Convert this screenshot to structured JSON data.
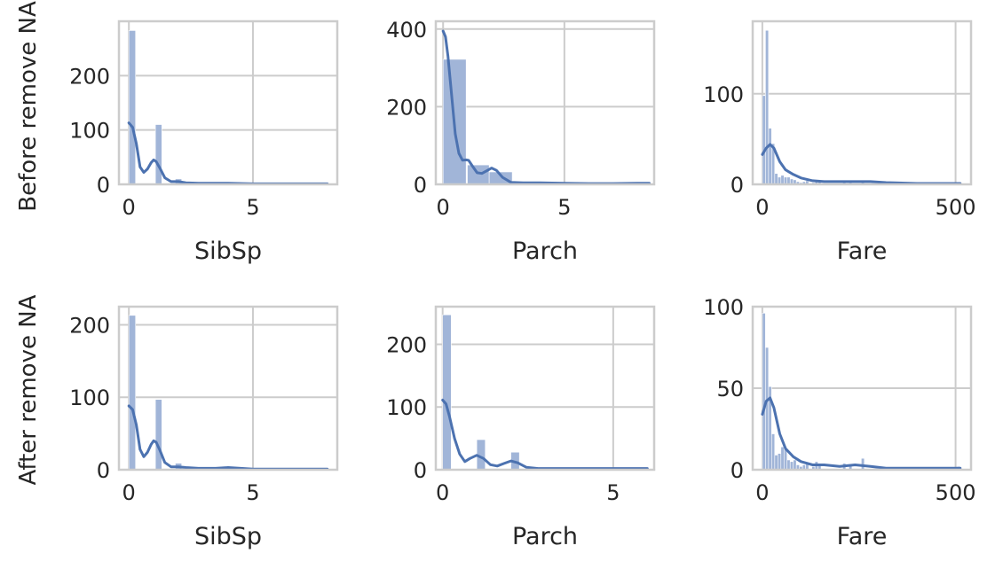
{
  "row_labels": [
    "Before remove NA",
    "After remove NA"
  ],
  "colors": {
    "bar": "#a1b5d8",
    "kde": "#4c72b0",
    "grid": "#cccccc",
    "frame": "#cccccc",
    "text": "#262626"
  },
  "chart_data": [
    {
      "type": "histogram",
      "row": 0,
      "col": 0,
      "xlabel": "SibSp",
      "ylabel": "Before remove NA",
      "xlim": [
        -0.4,
        8.4
      ],
      "ylim": [
        0,
        300
      ],
      "xticks": [
        0,
        5
      ],
      "xtick_labels": [
        "0",
        "5"
      ],
      "yticks": [
        0,
        100,
        200
      ],
      "ytick_labels": [
        "0",
        "100",
        "200"
      ],
      "bins": [
        [
          0,
          0.27,
          283
        ],
        [
          1.07,
          1.33,
          110
        ],
        [
          1.87,
          2.13,
          10
        ],
        [
          2.93,
          3.2,
          2
        ],
        [
          4,
          4.27,
          2
        ],
        [
          7.73,
          8,
          1
        ]
      ],
      "kde": [
        [
          0,
          113
        ],
        [
          0.15,
          105
        ],
        [
          0.3,
          75
        ],
        [
          0.45,
          32
        ],
        [
          0.6,
          22
        ],
        [
          0.75,
          28
        ],
        [
          0.9,
          40
        ],
        [
          1,
          45
        ],
        [
          1.1,
          42
        ],
        [
          1.25,
          30
        ],
        [
          1.45,
          12
        ],
        [
          1.7,
          5
        ],
        [
          2,
          5
        ],
        [
          2.3,
          3
        ],
        [
          2.8,
          2
        ],
        [
          3.5,
          2
        ],
        [
          4,
          2
        ],
        [
          5,
          1
        ],
        [
          6,
          1
        ],
        [
          7,
          1
        ],
        [
          8,
          1
        ]
      ]
    },
    {
      "type": "histogram",
      "row": 0,
      "col": 1,
      "xlabel": "Parch",
      "ylabel": "",
      "xlim": [
        -0.3,
        8.7
      ],
      "ylim": [
        0,
        420
      ],
      "xticks": [
        0,
        5
      ],
      "xtick_labels": [
        "0",
        "5"
      ],
      "yticks": [
        0,
        200,
        400
      ],
      "ytick_labels": [
        "0",
        "200",
        "400"
      ],
      "bins": [
        [
          0,
          0.95,
          322
        ],
        [
          1,
          1.9,
          50
        ],
        [
          1.9,
          2.85,
          32
        ],
        [
          2.95,
          3.8,
          3
        ],
        [
          3.8,
          4.75,
          3
        ],
        [
          4.75,
          5.7,
          3
        ],
        [
          5.7,
          6.6,
          1
        ]
      ],
      "kde": [
        [
          0,
          395
        ],
        [
          0.1,
          380
        ],
        [
          0.2,
          330
        ],
        [
          0.35,
          230
        ],
        [
          0.5,
          130
        ],
        [
          0.65,
          80
        ],
        [
          0.8,
          62
        ],
        [
          0.95,
          63
        ],
        [
          1.05,
          62
        ],
        [
          1.2,
          48
        ],
        [
          1.4,
          30
        ],
        [
          1.6,
          28
        ],
        [
          1.8,
          35
        ],
        [
          2,
          42
        ],
        [
          2.2,
          36
        ],
        [
          2.45,
          18
        ],
        [
          2.8,
          5
        ],
        [
          3.3,
          4
        ],
        [
          4,
          4
        ],
        [
          5,
          3
        ],
        [
          6,
          2
        ],
        [
          7,
          2
        ],
        [
          8,
          3
        ],
        [
          8.5,
          3
        ]
      ]
    },
    {
      "type": "histogram",
      "row": 0,
      "col": 2,
      "xlabel": "Fare",
      "ylabel": "",
      "xlim": [
        -25,
        540
      ],
      "ylim": [
        0,
        180
      ],
      "xticks": [
        0,
        500
      ],
      "xtick_labels": [
        "0",
        "500"
      ],
      "yticks": [
        0,
        100
      ],
      "ytick_labels": [
        "0",
        "100"
      ],
      "bins": [
        [
          0,
          8,
          98
        ],
        [
          8,
          16,
          170
        ],
        [
          16,
          24,
          62
        ],
        [
          24,
          32,
          45
        ],
        [
          32,
          40,
          12
        ],
        [
          40,
          48,
          8
        ],
        [
          48,
          56,
          10
        ],
        [
          56,
          64,
          8
        ],
        [
          64,
          72,
          8
        ],
        [
          72,
          80,
          6
        ],
        [
          80,
          88,
          5
        ],
        [
          88,
          96,
          3
        ],
        [
          96,
          104,
          2
        ],
        [
          104,
          112,
          3
        ],
        [
          112,
          120,
          4
        ],
        [
          128,
          136,
          2
        ],
        [
          136,
          144,
          4
        ],
        [
          144,
          152,
          3
        ],
        [
          208,
          216,
          4
        ],
        [
          224,
          232,
          2
        ],
        [
          256,
          264,
          4
        ],
        [
          504,
          512,
          2
        ]
      ],
      "kde": [
        [
          0,
          33
        ],
        [
          10,
          40
        ],
        [
          20,
          44
        ],
        [
          30,
          40
        ],
        [
          45,
          25
        ],
        [
          60,
          16
        ],
        [
          80,
          11
        ],
        [
          100,
          7
        ],
        [
          130,
          4
        ],
        [
          160,
          3
        ],
        [
          200,
          3
        ],
        [
          240,
          3
        ],
        [
          280,
          3
        ],
        [
          320,
          2
        ],
        [
          400,
          1
        ],
        [
          512,
          1
        ]
      ]
    },
    {
      "type": "histogram",
      "row": 1,
      "col": 0,
      "xlabel": "SibSp",
      "ylabel": "After remove NA",
      "xlim": [
        -0.4,
        8.4
      ],
      "ylim": [
        0,
        225
      ],
      "xticks": [
        0,
        5
      ],
      "xtick_labels": [
        "0",
        "5"
      ],
      "yticks": [
        0,
        100,
        200
      ],
      "ytick_labels": [
        "0",
        "100",
        "200"
      ],
      "bins": [
        [
          0,
          0.27,
          213
        ],
        [
          1.07,
          1.33,
          97
        ],
        [
          1.87,
          2.13,
          9
        ],
        [
          2.93,
          3.2,
          2
        ],
        [
          4,
          4.27,
          3
        ],
        [
          7.73,
          8,
          1
        ]
      ],
      "kde": [
        [
          0,
          88
        ],
        [
          0.15,
          83
        ],
        [
          0.3,
          62
        ],
        [
          0.45,
          28
        ],
        [
          0.6,
          18
        ],
        [
          0.75,
          24
        ],
        [
          0.9,
          35
        ],
        [
          1,
          40
        ],
        [
          1.1,
          38
        ],
        [
          1.25,
          27
        ],
        [
          1.45,
          10
        ],
        [
          1.7,
          4
        ],
        [
          2,
          4
        ],
        [
          2.3,
          3
        ],
        [
          2.8,
          2
        ],
        [
          3.5,
          2
        ],
        [
          4,
          3
        ],
        [
          5,
          1
        ],
        [
          6,
          1
        ],
        [
          7,
          1
        ],
        [
          8,
          1
        ]
      ]
    },
    {
      "type": "histogram",
      "row": 1,
      "col": 1,
      "xlabel": "Parch",
      "ylabel": "",
      "xlim": [
        -0.2,
        6.2
      ],
      "ylim": [
        0,
        260
      ],
      "xticks": [
        0,
        5
      ],
      "xtick_labels": [
        "0",
        "5"
      ],
      "yticks": [
        0,
        100,
        200
      ],
      "ytick_labels": [
        "0",
        "100",
        "200"
      ],
      "bins": [
        [
          0,
          0.25,
          247
        ],
        [
          1,
          1.25,
          48
        ],
        [
          2,
          2.25,
          28
        ],
        [
          3,
          3.25,
          2
        ],
        [
          4,
          4.25,
          2
        ],
        [
          5,
          5.25,
          2
        ],
        [
          6,
          6.25,
          1
        ]
      ],
      "kde": [
        [
          0,
          111
        ],
        [
          0.1,
          105
        ],
        [
          0.2,
          85
        ],
        [
          0.35,
          50
        ],
        [
          0.5,
          25
        ],
        [
          0.65,
          13
        ],
        [
          0.8,
          18
        ],
        [
          1,
          23
        ],
        [
          1.2,
          18
        ],
        [
          1.4,
          8
        ],
        [
          1.6,
          6
        ],
        [
          1.8,
          10
        ],
        [
          2,
          14
        ],
        [
          2.2,
          11
        ],
        [
          2.45,
          4
        ],
        [
          2.8,
          2
        ],
        [
          3.5,
          2
        ],
        [
          4,
          2
        ],
        [
          5,
          2
        ],
        [
          6,
          2
        ]
      ]
    },
    {
      "type": "histogram",
      "row": 1,
      "col": 2,
      "xlabel": "Fare",
      "ylabel": "",
      "xlim": [
        -25,
        540
      ],
      "ylim": [
        0,
        100
      ],
      "xticks": [
        0,
        500
      ],
      "xtick_labels": [
        "0",
        "500"
      ],
      "yticks": [
        0,
        50,
        100
      ],
      "ytick_labels": [
        "0",
        "50",
        "100"
      ],
      "bins": [
        [
          0,
          8,
          96
        ],
        [
          8,
          16,
          75
        ],
        [
          16,
          24,
          51
        ],
        [
          24,
          32,
          22
        ],
        [
          32,
          40,
          9
        ],
        [
          40,
          48,
          10
        ],
        [
          48,
          56,
          14
        ],
        [
          56,
          64,
          13
        ],
        [
          64,
          72,
          6
        ],
        [
          72,
          80,
          5
        ],
        [
          80,
          88,
          6
        ],
        [
          88,
          96,
          3
        ],
        [
          96,
          104,
          2
        ],
        [
          104,
          112,
          3
        ],
        [
          112,
          120,
          4
        ],
        [
          128,
          136,
          2
        ],
        [
          136,
          144,
          5
        ],
        [
          144,
          152,
          3
        ],
        [
          208,
          216,
          4
        ],
        [
          224,
          232,
          3
        ],
        [
          256,
          264,
          7
        ],
        [
          504,
          512,
          2
        ]
      ],
      "kde": [
        [
          0,
          34
        ],
        [
          10,
          42
        ],
        [
          20,
          44
        ],
        [
          30,
          38
        ],
        [
          45,
          22
        ],
        [
          60,
          13
        ],
        [
          80,
          8
        ],
        [
          100,
          5
        ],
        [
          130,
          3
        ],
        [
          160,
          3
        ],
        [
          200,
          2
        ],
        [
          240,
          3
        ],
        [
          280,
          2
        ],
        [
          320,
          1
        ],
        [
          400,
          1
        ],
        [
          512,
          1
        ]
      ]
    }
  ]
}
